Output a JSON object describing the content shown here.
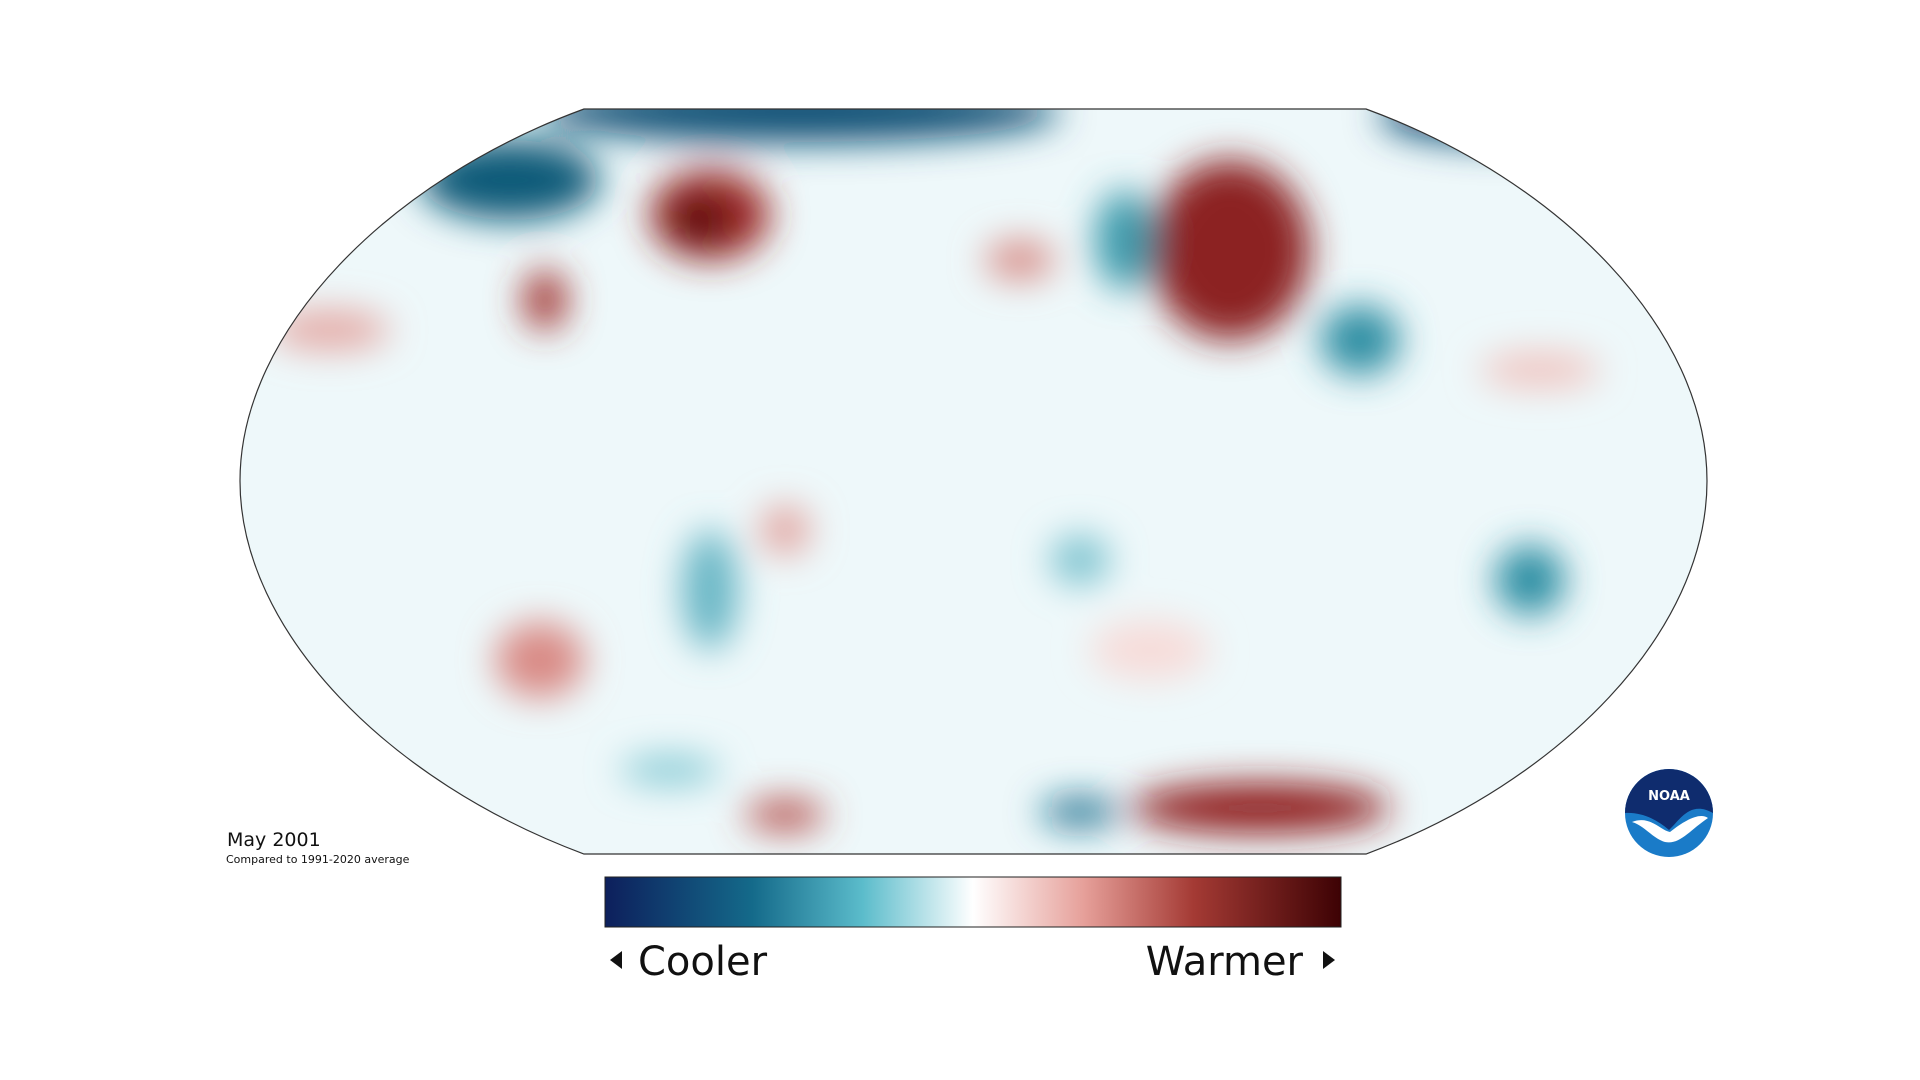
{
  "map": {
    "date_label": "May 2001",
    "subtitle": "Compared to 1991-2020 average"
  },
  "legend": {
    "low": "Cooler",
    "high": "Warmer"
  },
  "logo": "NOAA"
}
